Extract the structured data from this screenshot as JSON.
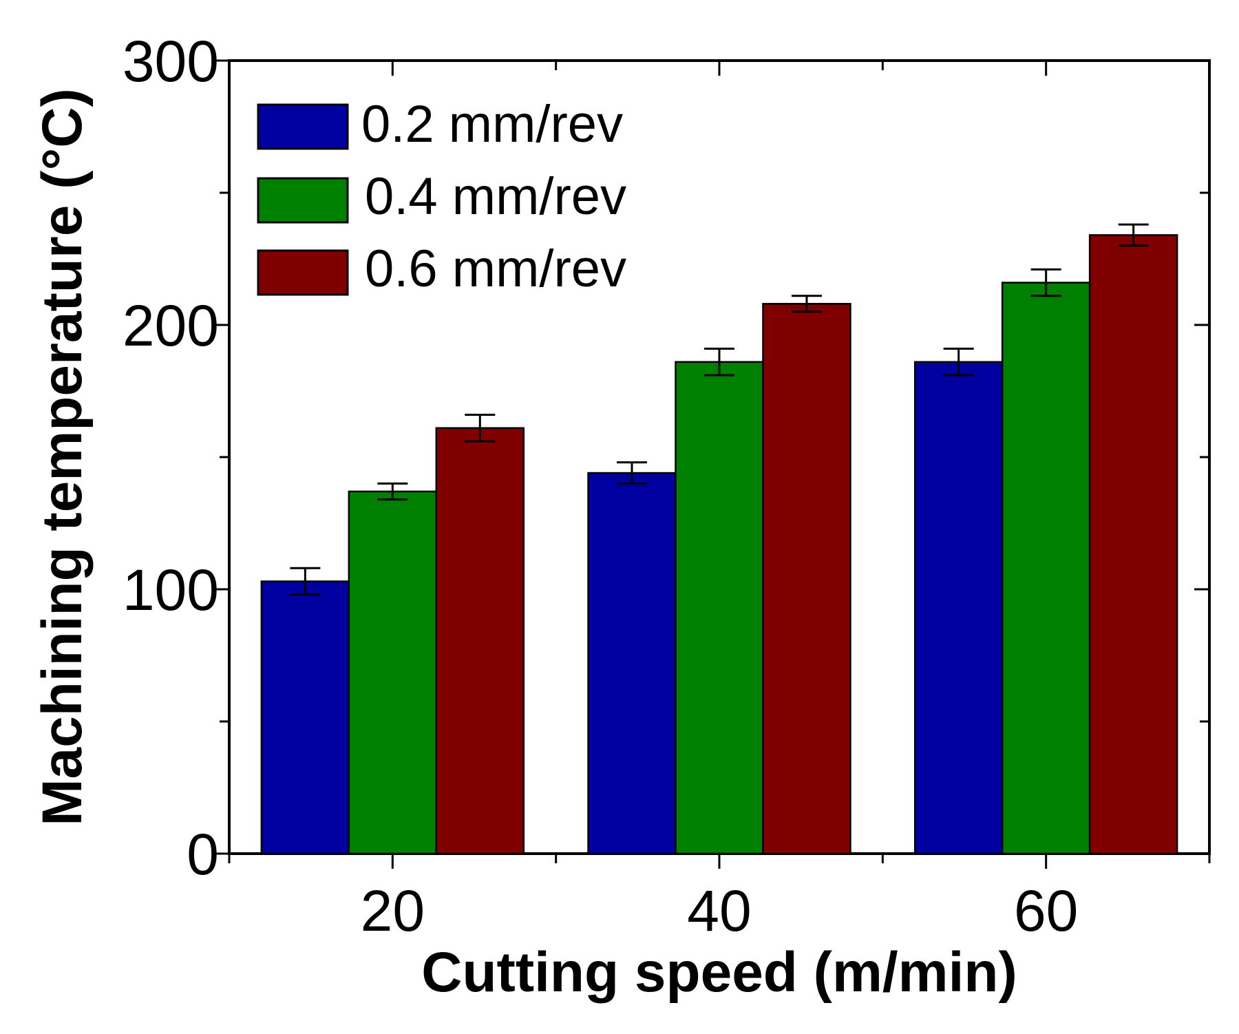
{
  "chart_data": {
    "type": "bar",
    "title": "",
    "xlabel": "Cutting speed (m/min)",
    "ylabel": "Machining temperature (°C)",
    "categories": [
      "20",
      "40",
      "60"
    ],
    "ylim": [
      0,
      300
    ],
    "yticks": [
      "0",
      "100",
      "200",
      "300"
    ],
    "legend_position": "top-left",
    "series": [
      {
        "name": "0.2 mm/rev",
        "color": "#0000A0",
        "values": [
          103,
          144,
          186
        ],
        "errors": [
          5,
          4,
          5
        ]
      },
      {
        "name": "0.4 mm/rev",
        "color": "#008000",
        "values": [
          137,
          186,
          216
        ],
        "errors": [
          3,
          5,
          5
        ]
      },
      {
        "name": "0.6 mm/rev",
        "color": "#800000",
        "values": [
          161,
          208,
          234
        ],
        "errors": [
          5,
          3,
          4
        ]
      }
    ]
  }
}
